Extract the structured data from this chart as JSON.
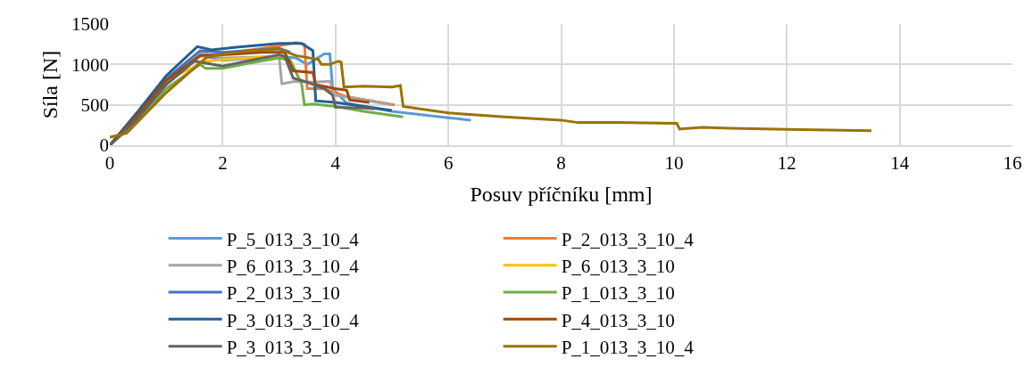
{
  "chart_data": {
    "type": "line",
    "xlabel": "Posuv příčníku [mm]",
    "ylabel": "Síla [N]",
    "xlim": [
      0,
      16
    ],
    "xticks": [
      0,
      2,
      4,
      6,
      8,
      10,
      12,
      14,
      16
    ],
    "ylim": [
      0,
      1500
    ],
    "yticks": [
      0,
      500,
      1000,
      1500
    ],
    "grid": true,
    "legend": "bottom",
    "marker": "none",
    "line_style": "solid",
    "series": [
      {
        "name": "P_5_013_3_10_4",
        "color": "#5b9bd5",
        "x": [
          0,
          0.5,
          1,
          1.6,
          2,
          3,
          3.3,
          3.5,
          3.8,
          3.9,
          3.95,
          4.2,
          5,
          6,
          6.4
        ],
        "values": [
          0,
          380,
          800,
          1120,
          1050,
          1100,
          1080,
          1000,
          1130,
          1130,
          700,
          520,
          420,
          340,
          310
        ]
      },
      {
        "name": "P_2_013_3_10_4",
        "color": "#ed7d31",
        "x": [
          0,
          0.5,
          1,
          1.6,
          2,
          3,
          3.3,
          3.45,
          3.5,
          3.8,
          4.2,
          5.05
        ],
        "values": [
          0,
          380,
          800,
          1100,
          1130,
          1230,
          1270,
          1250,
          700,
          700,
          600,
          500
        ]
      },
      {
        "name": "P_6_013_3_10_4",
        "color": "#a5a5a5",
        "x": [
          0,
          0.5,
          1,
          1.6,
          2,
          3,
          3.05,
          3.3,
          3.6,
          3.9,
          4.0,
          4.5,
          5
        ],
        "values": [
          0,
          360,
          780,
          1150,
          1080,
          1100,
          760,
          790,
          780,
          790,
          620,
          560,
          500
        ]
      },
      {
        "name": "P_6_013_3_10",
        "color": "#ffc000",
        "x": [
          0,
          1,
          1.7,
          2,
          2.5,
          3,
          3.2
        ],
        "values": [
          0,
          800,
          1040,
          1060,
          1080,
          1100,
          1050
        ]
      },
      {
        "name": "P_2_013_3_10",
        "color": "#4472c4",
        "x": [
          0,
          1,
          1.6,
          2,
          3,
          3.2
        ],
        "values": [
          0,
          820,
          1170,
          1150,
          1200,
          1150
        ]
      },
      {
        "name": "P_1_013_3_10",
        "color": "#70ad47",
        "x": [
          0,
          0.5,
          1,
          1.5,
          1.6,
          1.7,
          2,
          2.5,
          3,
          3.2,
          3.4,
          3.45,
          3.6,
          4,
          4.5,
          5.2
        ],
        "values": [
          0,
          300,
          700,
          950,
          1000,
          950,
          950,
          1020,
          1080,
          1050,
          760,
          500,
          510,
          480,
          420,
          350
        ]
      },
      {
        "name": "P_3_013_3_10_4",
        "color": "#255e91",
        "x": [
          0,
          0.5,
          1,
          1.55,
          1.8,
          2.2,
          3.0,
          3.4,
          3.6,
          3.65,
          4,
          4.5,
          5
        ],
        "values": [
          0,
          420,
          860,
          1220,
          1180,
          1210,
          1260,
          1260,
          1170,
          550,
          530,
          480,
          430
        ]
      },
      {
        "name": "P_4_013_3_10",
        "color": "#9e480e",
        "x": [
          0,
          0.5,
          1,
          1.6,
          2,
          2.7,
          3.1,
          3.2,
          3.25,
          3.6,
          3.65,
          4,
          4.2,
          4.25,
          4.6
        ],
        "values": [
          0,
          380,
          800,
          1110,
          1120,
          1150,
          1150,
          1000,
          920,
          900,
          750,
          700,
          680,
          560,
          530
        ]
      },
      {
        "name": "P_3_013_3_10",
        "color": "#636363",
        "x": [
          0,
          0.5,
          1,
          1.5,
          2,
          2.5,
          3,
          3.1,
          3.25,
          3.5,
          3.8,
          3.95,
          4.0,
          4.5,
          4.7
        ],
        "values": [
          0,
          340,
          750,
          1040,
          980,
          1050,
          1120,
          1100,
          830,
          780,
          700,
          620,
          470,
          460,
          450
        ]
      },
      {
        "name": "P_1_013_3_10_4",
        "color": "#997300",
        "x": [
          0,
          0.3,
          1,
          1.7,
          2,
          2.5,
          3,
          3.3,
          3.7,
          3.75,
          3.9,
          4.05,
          4.1,
          4.15,
          4.5,
          5,
          5.15,
          5.2,
          5.5,
          6,
          7,
          8,
          8.3,
          9,
          10.05,
          10.1,
          10.5,
          11,
          12,
          13,
          13.5
        ],
        "values": [
          100,
          150,
          650,
          1080,
          1130,
          1170,
          1190,
          1110,
          1060,
          1000,
          1000,
          1040,
          1030,
          720,
          730,
          720,
          740,
          480,
          450,
          400,
          350,
          310,
          280,
          280,
          270,
          200,
          220,
          210,
          195,
          185,
          180
        ]
      }
    ]
  }
}
